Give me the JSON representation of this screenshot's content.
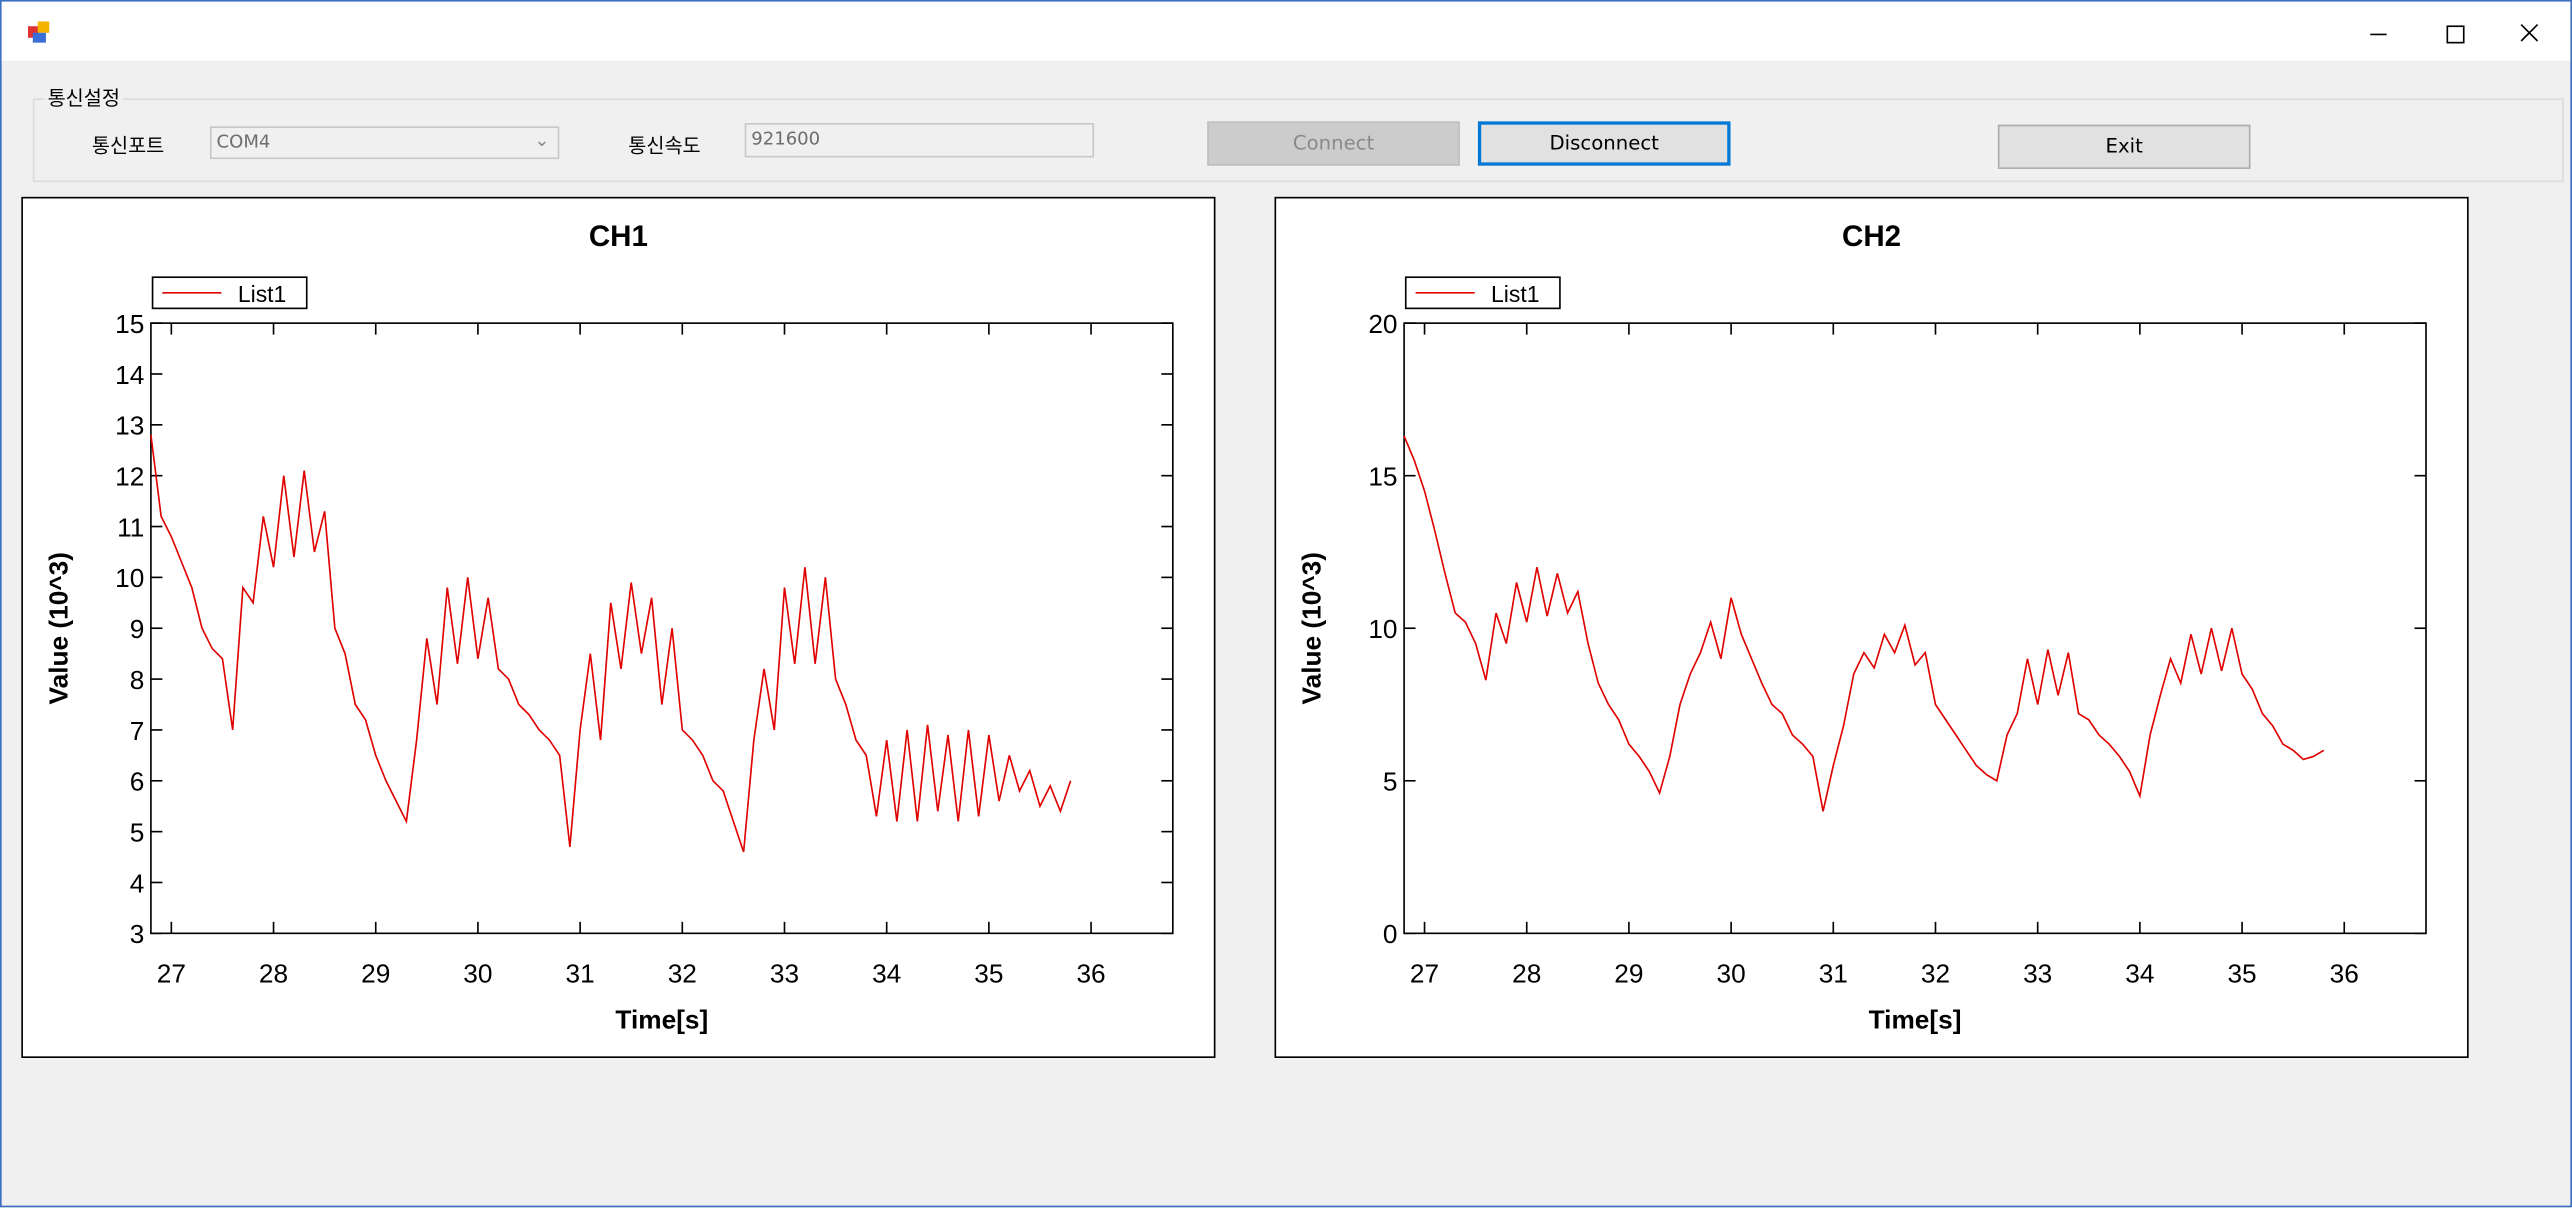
{
  "window": {
    "group_title": "통신설정",
    "port_label": "통신포트",
    "port_value": "COM4",
    "speed_label": "통신속도",
    "speed_value": "921600",
    "buttons": [
      "Connect",
      "Disconnect",
      "Exit"
    ]
  },
  "chart_data": [
    {
      "type": "line",
      "title": "CH1",
      "x_label": "Time[s]",
      "y_label": "Value (10^3)",
      "legend": "top-left",
      "x": [
        26.8,
        26.9,
        27.0,
        27.1,
        27.2,
        27.3,
        27.4,
        27.5,
        27.6,
        27.7,
        27.8,
        27.9,
        28.0,
        28.1,
        28.2,
        28.3,
        28.4,
        28.5,
        28.6,
        28.7,
        28.8,
        28.9,
        29.0,
        29.1,
        29.2,
        29.3,
        29.4,
        29.5,
        29.6,
        29.7,
        29.8,
        29.9,
        30.0,
        30.1,
        30.2,
        30.3,
        30.4,
        30.5,
        30.6,
        30.7,
        30.8,
        30.9,
        31.0,
        31.1,
        31.2,
        31.3,
        31.4,
        31.5,
        31.6,
        31.7,
        31.8,
        31.9,
        32.0,
        32.1,
        32.2,
        32.3,
        32.4,
        32.5,
        32.6,
        32.7,
        32.8,
        32.9,
        33.0,
        33.1,
        33.2,
        33.3,
        33.4,
        33.5,
        33.6,
        33.7,
        33.8,
        33.9,
        34.0,
        34.1,
        34.2,
        34.3,
        34.4,
        34.5,
        34.6,
        34.7,
        34.8,
        34.9,
        35.0,
        35.1,
        35.2,
        35.3,
        35.4,
        35.5,
        35.6,
        35.7,
        35.8
      ],
      "series": [
        {
          "name": "List1",
          "color": "#e00000",
          "values": [
            12.8,
            11.2,
            10.8,
            10.3,
            9.8,
            9.0,
            8.6,
            8.4,
            7.0,
            9.8,
            9.5,
            11.2,
            10.2,
            12.0,
            10.4,
            12.1,
            10.5,
            11.3,
            9.0,
            8.5,
            7.5,
            7.2,
            6.5,
            6.0,
            5.6,
            5.2,
            6.8,
            8.8,
            7.5,
            9.8,
            8.3,
            10.0,
            8.4,
            9.6,
            8.2,
            8.0,
            7.5,
            7.3,
            7.0,
            6.8,
            6.5,
            4.7,
            7.0,
            8.5,
            6.8,
            9.5,
            8.2,
            9.9,
            8.5,
            9.6,
            7.5,
            9.0,
            7.0,
            6.8,
            6.5,
            6.0,
            5.8,
            5.2,
            4.6,
            6.8,
            8.2,
            7.0,
            9.8,
            8.3,
            10.2,
            8.3,
            10.0,
            8.0,
            7.5,
            6.8,
            6.5,
            5.3,
            6.8,
            5.2,
            7.0,
            5.2,
            7.1,
            5.4,
            6.9,
            5.2,
            7.0,
            5.3,
            6.9,
            5.6,
            6.5,
            5.8,
            6.2,
            5.5,
            5.9,
            5.4,
            6.0
          ]
        }
      ],
      "xlim": [
        26.8,
        36.8
      ],
      "ylim": [
        3,
        15
      ],
      "xticks": [
        27,
        28,
        29,
        30,
        31,
        32,
        33,
        34,
        35,
        36
      ],
      "yticks": [
        3,
        4,
        5,
        6,
        7,
        8,
        9,
        10,
        11,
        12,
        13,
        14,
        15
      ]
    },
    {
      "type": "line",
      "title": "CH2",
      "x_label": "Time[s]",
      "y_label": "Value (10^3)",
      "legend": "top-left",
      "x": [
        26.8,
        26.9,
        27.0,
        27.1,
        27.2,
        27.3,
        27.4,
        27.5,
        27.6,
        27.7,
        27.8,
        27.9,
        28.0,
        28.1,
        28.2,
        28.3,
        28.4,
        28.5,
        28.6,
        28.7,
        28.8,
        28.9,
        29.0,
        29.1,
        29.2,
        29.3,
        29.4,
        29.5,
        29.6,
        29.7,
        29.8,
        29.9,
        30.0,
        30.1,
        30.2,
        30.3,
        30.4,
        30.5,
        30.6,
        30.7,
        30.8,
        30.9,
        31.0,
        31.1,
        31.2,
        31.3,
        31.4,
        31.5,
        31.6,
        31.7,
        31.8,
        31.9,
        32.0,
        32.1,
        32.2,
        32.3,
        32.4,
        32.5,
        32.6,
        32.7,
        32.8,
        32.9,
        33.0,
        33.1,
        33.2,
        33.3,
        33.4,
        33.5,
        33.6,
        33.7,
        33.8,
        33.9,
        34.0,
        34.1,
        34.2,
        34.3,
        34.4,
        34.5,
        34.6,
        34.7,
        34.8,
        34.9,
        35.0,
        35.1,
        35.2,
        35.3,
        35.4,
        35.5,
        35.6,
        35.7,
        35.8
      ],
      "series": [
        {
          "name": "List1",
          "color": "#e00000",
          "values": [
            16.3,
            15.5,
            14.5,
            13.2,
            11.8,
            10.5,
            10.2,
            9.5,
            8.3,
            10.5,
            9.5,
            11.5,
            10.2,
            12.0,
            10.4,
            11.8,
            10.5,
            11.2,
            9.5,
            8.2,
            7.5,
            7.0,
            6.2,
            5.8,
            5.3,
            4.6,
            5.8,
            7.5,
            8.5,
            9.2,
            10.2,
            9.0,
            11.0,
            9.8,
            9.0,
            8.2,
            7.5,
            7.2,
            6.5,
            6.2,
            5.8,
            4.0,
            5.5,
            6.8,
            8.5,
            9.2,
            8.7,
            9.8,
            9.2,
            10.1,
            8.8,
            9.2,
            7.5,
            7.0,
            6.5,
            6.0,
            5.5,
            5.2,
            5.0,
            6.5,
            7.2,
            9.0,
            7.5,
            9.3,
            7.8,
            9.2,
            7.2,
            7.0,
            6.5,
            6.2,
            5.8,
            5.3,
            4.5,
            6.5,
            7.8,
            9.0,
            8.2,
            9.8,
            8.5,
            10.0,
            8.6,
            10.0,
            8.5,
            8.0,
            7.2,
            6.8,
            6.2,
            6.0,
            5.7,
            5.8,
            6.0
          ]
        }
      ],
      "xlim": [
        26.8,
        36.8
      ],
      "ylim": [
        0,
        20
      ],
      "xticks": [
        27,
        28,
        29,
        30,
        31,
        32,
        33,
        34,
        35,
        36
      ],
      "yticks": [
        0,
        5,
        10,
        15,
        20
      ]
    }
  ]
}
